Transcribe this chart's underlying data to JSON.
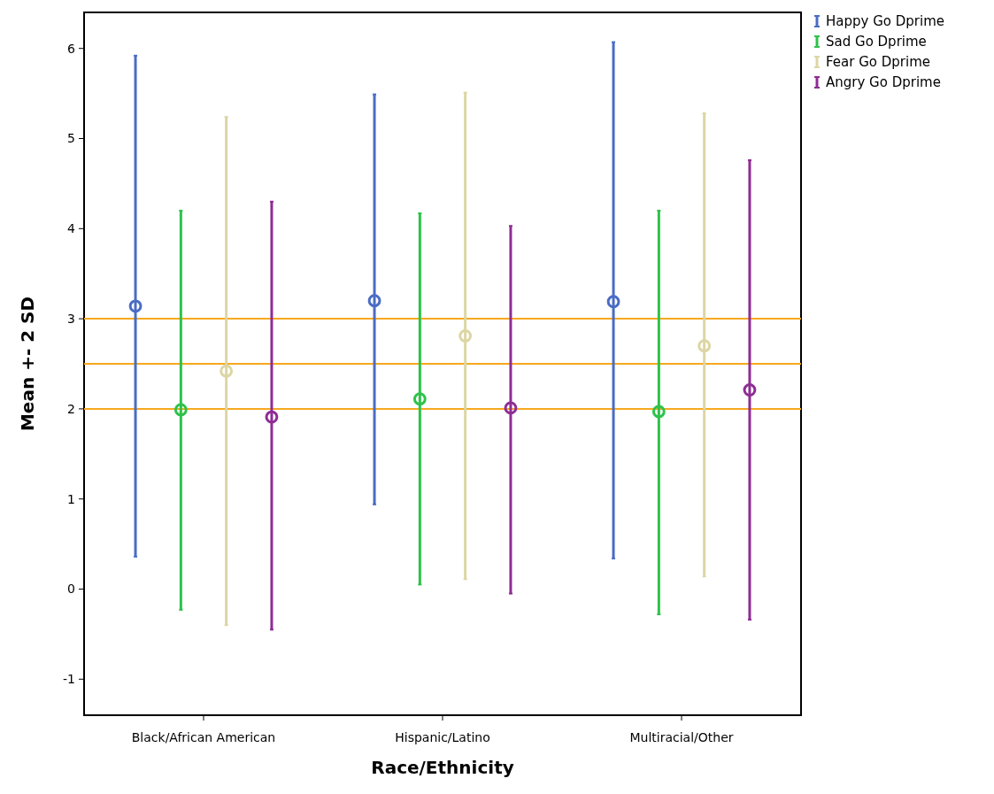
{
  "chart_data": {
    "type": "scatter",
    "xlabel": "Race/Ethnicity",
    "ylabel": "Mean +- 2 SD",
    "categories": [
      "Black/African American",
      "Hispanic/Latino",
      "Multiracial/Other"
    ],
    "series": [
      {
        "name": "Happy Go Dprime",
        "color": "#4a6cc4",
        "values": [
          3.14,
          3.2,
          3.19
        ],
        "errors": [
          [
            0.36,
            5.92
          ],
          [
            0.94,
            5.49
          ],
          [
            0.34,
            6.07
          ]
        ]
      },
      {
        "name": "Sad Go Dprime",
        "color": "#2ec24a",
        "values": [
          1.99,
          2.11,
          1.97
        ],
        "errors": [
          [
            -0.23,
            4.2
          ],
          [
            0.05,
            4.17
          ],
          [
            -0.28,
            4.2
          ]
        ]
      },
      {
        "name": "Fear Go Dprime",
        "color": "#dcd6a4",
        "values": [
          2.42,
          2.81,
          2.7
        ],
        "errors": [
          [
            -0.4,
            5.24
          ],
          [
            0.11,
            5.51
          ],
          [
            0.14,
            5.28
          ]
        ]
      },
      {
        "name": "Angry Go Dprime",
        "color": "#8e2d94",
        "values": [
          1.91,
          2.01,
          2.21
        ],
        "errors": [
          [
            -0.45,
            4.3
          ],
          [
            -0.05,
            4.03
          ],
          [
            -0.34,
            4.76
          ]
        ]
      }
    ],
    "ylim": [
      -1.4,
      6.4
    ],
    "yticks": [
      -1,
      0,
      1,
      2,
      3,
      4,
      5,
      6
    ],
    "ref_lines": [
      {
        "axis": "y",
        "value": 2,
        "color": "#f7a81e"
      },
      {
        "axis": "y",
        "value": 2.5,
        "color": "#f7a81e"
      },
      {
        "axis": "y",
        "value": 3,
        "color": "#f7a81e"
      }
    ],
    "marker": "circle",
    "legend": "top right",
    "grid": false
  }
}
